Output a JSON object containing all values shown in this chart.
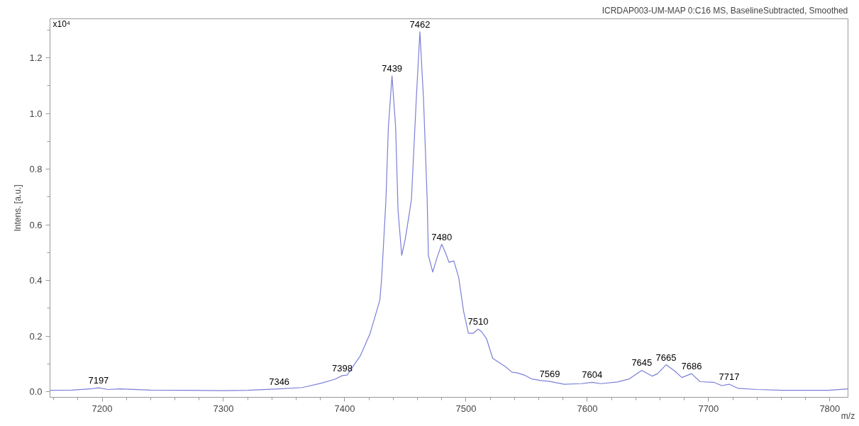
{
  "chart_data": {
    "type": "line",
    "title": "ICRDAP003-UM-MAP 0:C16 MS, BaselineSubtracted, Smoothed",
    "xlabel": "m/z",
    "ylabel": "Intens. [a.u.]",
    "x": [
      7157,
      7175,
      7190,
      7197,
      7205,
      7215,
      7240,
      7270,
      7300,
      7320,
      7346,
      7365,
      7380,
      7392,
      7398,
      7402,
      7413,
      7421,
      7429,
      7430.5,
      7433,
      7434,
      7436,
      7439,
      7442,
      7444,
      7447,
      7450,
      7453.6,
      7455,
      7459,
      7462,
      7465,
      7468,
      7469,
      7472.6,
      7476,
      7480,
      7483,
      7486,
      7490,
      7494,
      7498,
      7502,
      7506,
      7510,
      7513,
      7517,
      7522,
      7532.5,
      7538,
      7542,
      7548,
      7554,
      7562,
      7569,
      7581,
      7595,
      7604,
      7611,
      7625,
      7634.6,
      7645,
      7653.6,
      7658,
      7665,
      7672,
      7678,
      7686,
      7693,
      7704,
      7711,
      7717,
      7724.5,
      7740,
      7761,
      7780,
      7799,
      7815
    ],
    "values": [
      0.005,
      0.006,
      0.01,
      0.014,
      0.008,
      0.01,
      0.006,
      0.005,
      0.004,
      0.005,
      0.01,
      0.015,
      0.03,
      0.045,
      0.058,
      0.06,
      0.13,
      0.21,
      0.33,
      0.41,
      0.61,
      0.69,
      0.95,
      1.135,
      0.95,
      0.65,
      0.49,
      0.55,
      0.65,
      0.69,
      1.05,
      1.293,
      1.05,
      0.69,
      0.49,
      0.43,
      0.48,
      0.53,
      0.5,
      0.465,
      0.47,
      0.41,
      0.29,
      0.21,
      0.21,
      0.225,
      0.215,
      0.19,
      0.12,
      0.09,
      0.07,
      0.068,
      0.06,
      0.046,
      0.04,
      0.037,
      0.027,
      0.029,
      0.034,
      0.029,
      0.035,
      0.046,
      0.077,
      0.056,
      0.065,
      0.097,
      0.075,
      0.051,
      0.065,
      0.036,
      0.034,
      0.022,
      0.027,
      0.012,
      0.008,
      0.005,
      0.005,
      0.005,
      0.01
    ],
    "color": "#7b7fd6",
    "xlim": [
      7157,
      7815
    ],
    "ylim": [
      -0.02,
      1.34
    ],
    "xticks": [
      7200,
      7300,
      7400,
      7500,
      7600,
      7700,
      7800
    ],
    "yticks": [
      {
        "value": 0,
        "label": "0.0"
      },
      {
        "value": 0.2,
        "label": "0.2"
      },
      {
        "value": 0.4,
        "label": "0.4"
      },
      {
        "value": 0.6,
        "label": "0.6"
      },
      {
        "value": 0.8,
        "label": "0.8"
      },
      {
        "value": 1.0,
        "label": "1.0"
      },
      {
        "value": 1.2,
        "label": "1.2"
      }
    ],
    "grid": false,
    "legend": false,
    "marker": "none",
    "line_style": "solid",
    "annotations": [
      "x10⁴",
      {
        "text": "7197",
        "x": 7197,
        "y": 0.014
      },
      {
        "text": "7346",
        "x": 7346,
        "y": 0.01
      },
      {
        "text": "7398",
        "x": 7398,
        "y": 0.058
      },
      {
        "text": "7439",
        "x": 7439,
        "y": 1.135
      },
      {
        "text": "7462",
        "x": 7462,
        "y": 1.293
      },
      {
        "text": "7480",
        "x": 7480,
        "y": 0.53
      },
      {
        "text": "7510",
        "x": 7510,
        "y": 0.225
      },
      {
        "text": "7569",
        "x": 7569,
        "y": 0.037
      },
      {
        "text": "7604",
        "x": 7604,
        "y": 0.034
      },
      {
        "text": "7645",
        "x": 7645,
        "y": 0.077
      },
      {
        "text": "7665",
        "x": 7665,
        "y": 0.097
      },
      {
        "text": "7686",
        "x": 7686,
        "y": 0.065
      },
      {
        "text": "7717",
        "x": 7717,
        "y": 0.027
      }
    ]
  }
}
